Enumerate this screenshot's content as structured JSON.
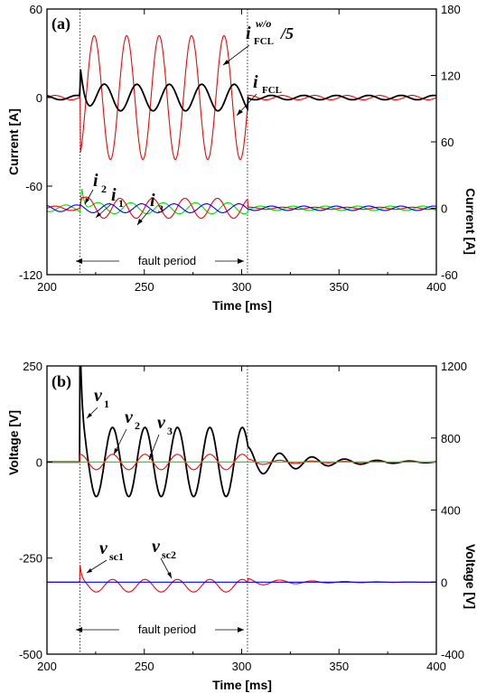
{
  "chart_data": [
    {
      "type": "line",
      "panel_label": "(a)",
      "xlabel": "Time [ms]",
      "ylabel_left": "Current [A]",
      "ylabel_right": "Current [A]",
      "xlim": [
        200,
        400
      ],
      "xticks": [
        "200",
        "250",
        "300",
        "350",
        "400"
      ],
      "ylim_left": [
        -120,
        60
      ],
      "yticks_left": [
        "60",
        "0",
        "-60",
        "-120"
      ],
      "ylim_right": [
        -60,
        180
      ],
      "yticks_right": [
        "180",
        "120",
        "60",
        "0",
        "-60"
      ],
      "fault_start_ms": 217,
      "fault_end_ms": 303,
      "fault_label": "fault period",
      "series": [
        {
          "name": "i^{w/o}_{FCL}/5",
          "label": "i",
          "sup": "w/o",
          "sub": "FCL",
          "suffix": "/5",
          "axis": "left",
          "color": "#ff0000",
          "amp_prefault": 1.5,
          "amp_fault": 42,
          "amp_postfault": 1.5,
          "freq_hz": 60
        },
        {
          "name": "i_FCL",
          "label": "i",
          "sub": "FCL",
          "axis": "left",
          "color": "#000000",
          "amp_prefault": 1.5,
          "amp_fault": 9,
          "peak": 31,
          "amp_postfault": 1.5,
          "freq_hz": 60
        },
        {
          "name": "i_2",
          "label": "i",
          "sub": "2",
          "axis": "right",
          "color": "#00dd00",
          "amp_prefault": 3,
          "amp_fault": 5,
          "peak": 47,
          "amp_postfault": 2,
          "freq_hz": 60
        },
        {
          "name": "i_1",
          "label": "i",
          "sub": "1",
          "axis": "right",
          "color": "#ff0000",
          "amp_prefault": 2,
          "amp_fault": 9,
          "peak": 19,
          "amp_postfault": 1,
          "freq_hz": 60
        },
        {
          "name": "i_3",
          "label": "i",
          "sub": "3",
          "axis": "right",
          "color": "#0000ff",
          "amp_prefault": 3,
          "amp_fault": 4,
          "amp_postfault": 2,
          "freq_hz": 60
        }
      ]
    },
    {
      "type": "line",
      "panel_label": "(b)",
      "xlabel": "Time [ms]",
      "ylabel_left": "Voltage [V]",
      "ylabel_right": "Voltage [V]",
      "xlim": [
        200,
        400
      ],
      "xticks": [
        "200",
        "250",
        "300",
        "350",
        "400"
      ],
      "ylim_left": [
        -500,
        250
      ],
      "yticks_left": [
        "250",
        "0",
        "-250",
        "-500"
      ],
      "ylim_right": [
        -400,
        1200
      ],
      "yticks_right": [
        "1200",
        "800",
        "400",
        "0",
        "-400"
      ],
      "fault_start_ms": 217,
      "fault_end_ms": 303,
      "fault_label": "fault period",
      "series": [
        {
          "name": "v_1",
          "label": "v",
          "sub": "1",
          "axis": "left",
          "color": "#000000",
          "amp_fault": 90,
          "peak": 250,
          "amp_postfault_start": 40,
          "freq_hz": 60
        },
        {
          "name": "v_2",
          "label": "v",
          "sub": "2",
          "axis": "left",
          "color": "#ff0000",
          "amp_fault": 20,
          "amp_postfault_start": 8,
          "freq_hz": 60
        },
        {
          "name": "v_3",
          "label": "v",
          "sub": "3",
          "axis": "left",
          "color": "#00dd00",
          "amp_fault": 0,
          "freq_hz": 60
        },
        {
          "name": "v_sc1",
          "label": "v",
          "sub": "sc1",
          "axis": "right",
          "color": "#ff0000",
          "amp_fault": 70,
          "peak": 80,
          "peak_level": 190,
          "amp_postfault_start": 20,
          "freq_hz": 60
        },
        {
          "name": "v_sc2",
          "label": "v",
          "sub": "sc2",
          "axis": "right",
          "color": "#0000ff",
          "amp_fault": 0,
          "freq_hz": 60
        }
      ]
    }
  ]
}
